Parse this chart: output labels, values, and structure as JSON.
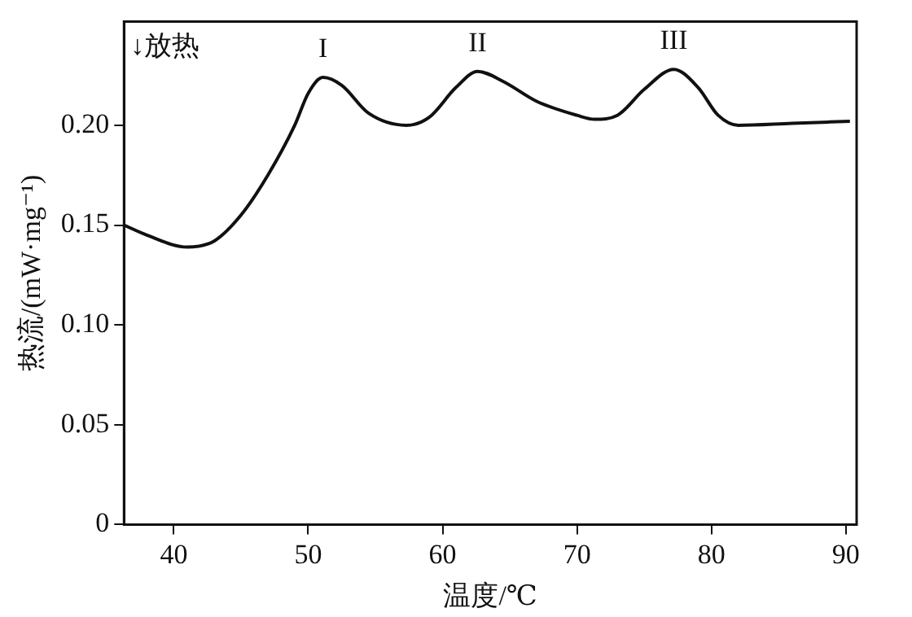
{
  "chart_data": {
    "type": "line",
    "xlabel": "温度/℃",
    "ylabel": "热流/(mW·mg⁻¹)",
    "series": [
      {
        "color": "#111111",
        "x": [
          36.3,
          38,
          41,
          43,
          45,
          47,
          49,
          50,
          51.1,
          52.5,
          54.5,
          57.3,
          59,
          61,
          62.6,
          64.5,
          67,
          70,
          71.3,
          73,
          75,
          77.2,
          79,
          80.5,
          82,
          86,
          90.3
        ],
        "values": [
          0.15,
          0.145,
          0.139,
          0.142,
          0.155,
          0.175,
          0.2,
          0.216,
          0.224,
          0.22,
          0.206,
          0.2,
          0.204,
          0.219,
          0.227,
          0.222,
          0.212,
          0.205,
          0.203,
          0.205,
          0.218,
          0.228,
          0.219,
          0.205,
          0.2,
          0.201,
          0.202
        ]
      }
    ],
    "xlim": [
      36.3,
      90.8
    ],
    "xticks": [
      40,
      50,
      60,
      70,
      80,
      90
    ],
    "ylim": [
      0,
      0.252
    ],
    "yticks": [
      0,
      0.05,
      {
        "value": 0.1,
        "label": "0.10"
      },
      0.15,
      {
        "value": 0.2,
        "label": "0.20"
      }
    ],
    "grid": false,
    "legend": false,
    "marker": "none",
    "line_style": "solid",
    "annotations": [
      "↓放热",
      {
        "text": "I",
        "x": 51.1,
        "y": 0.224
      },
      {
        "text": "II",
        "x": 62.6,
        "y": 0.227
      },
      {
        "text": "III",
        "x": 77.2,
        "y": 0.228
      }
    ]
  }
}
